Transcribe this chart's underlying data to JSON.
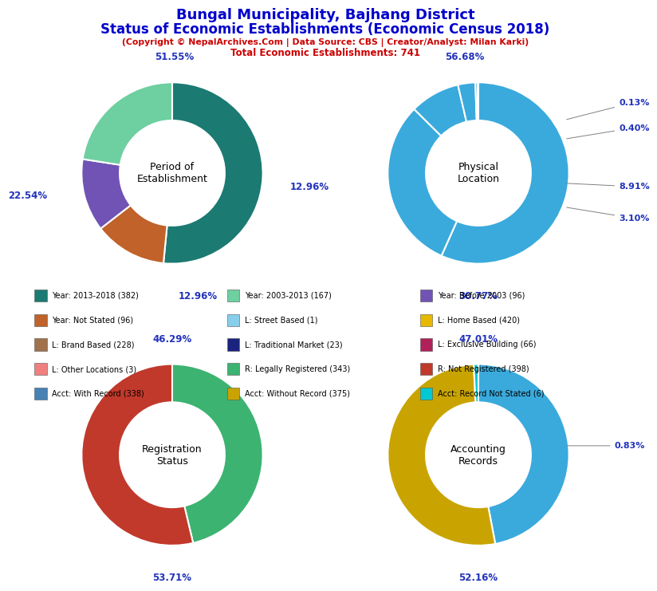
{
  "title_line1": "Bungal Municipality, Bajhang District",
  "title_line2": "Status of Economic Establishments (Economic Census 2018)",
  "subtitle": "(Copyright © NepalArchives.Com | Data Source: CBS | Creator/Analyst: Milan Karki)",
  "subtitle2": "Total Economic Establishments: 741",
  "title_color": "#0000CC",
  "subtitle_color": "#CC0000",
  "pie1_label": "Period of\nEstablishment",
  "pie1_values": [
    51.55,
    12.96,
    12.96,
    22.54
  ],
  "pie1_colors": [
    "#1b7a72",
    "#c0622a",
    "#7053b5",
    "#6ecfa0"
  ],
  "pie1_pct_labels": [
    "51.55%",
    "12.96%",
    "12.96%",
    "22.54%"
  ],
  "pie2_label": "Physical\nLocation",
  "pie2_values": [
    56.68,
    30.77,
    8.91,
    3.1,
    0.4,
    0.13
  ],
  "pie2_colors": [
    "#3aaadc",
    "#3aaadc",
    "#3aaadc",
    "#3aaadc",
    "#3aaadc",
    "#3aaadc"
  ],
  "pie2_pct_labels": [
    "56.68%",
    "30.77%",
    "8.91%",
    "3.10%",
    "0.40%",
    "0.13%"
  ],
  "pie3_label": "Registration\nStatus",
  "pie3_values": [
    46.29,
    53.71
  ],
  "pie3_colors": [
    "#3cb371",
    "#c0392b"
  ],
  "pie3_pct_labels": [
    "46.29%",
    "53.71%"
  ],
  "pie4_label": "Accounting\nRecords",
  "pie4_values": [
    47.01,
    52.16,
    0.83
  ],
  "pie4_colors": [
    "#3aaadc",
    "#c9a400",
    "#00c8d4"
  ],
  "pie4_pct_labels": [
    "47.01%",
    "52.16%",
    "0.83%"
  ],
  "legend_items": [
    {
      "label": "Year: 2013-2018 (382)",
      "color": "#1b7a72"
    },
    {
      "label": "Year: 2003-2013 (167)",
      "color": "#6ecfa0"
    },
    {
      "label": "Year: Before 2003 (96)",
      "color": "#7053b5"
    },
    {
      "label": "Year: Not Stated (96)",
      "color": "#c0622a"
    },
    {
      "label": "L: Street Based (1)",
      "color": "#87CEEB"
    },
    {
      "label": "L: Home Based (420)",
      "color": "#e6b800"
    },
    {
      "label": "L: Brand Based (228)",
      "color": "#a0714a"
    },
    {
      "label": "L: Traditional Market (23)",
      "color": "#1a237e"
    },
    {
      "label": "L: Exclusive Building (66)",
      "color": "#b0205a"
    },
    {
      "label": "L: Other Locations (3)",
      "color": "#f08080"
    },
    {
      "label": "R: Legally Registered (343)",
      "color": "#3cb371"
    },
    {
      "label": "R: Not Registered (398)",
      "color": "#c0392b"
    },
    {
      "label": "Acct: With Record (338)",
      "color": "#4682b4"
    },
    {
      "label": "Acct: Without Record (375)",
      "color": "#c9a400"
    },
    {
      "label": "Acct: Record Not Stated (6)",
      "color": "#00c8d4"
    }
  ]
}
